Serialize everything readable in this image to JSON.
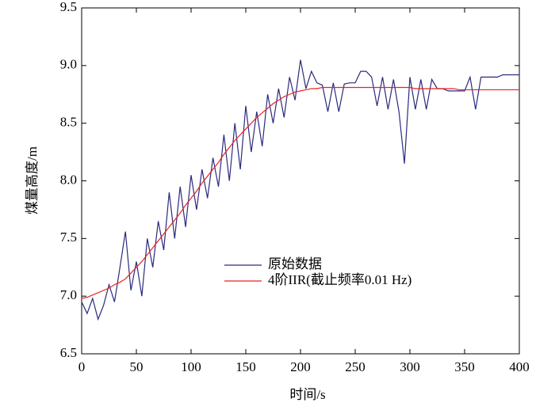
{
  "chart_data": {
    "type": "line",
    "xlabel": "时间/s",
    "ylabel": "煤量高度/m",
    "x": [
      0,
      5,
      10,
      15,
      20,
      25,
      30,
      35,
      40,
      45,
      50,
      55,
      60,
      65,
      70,
      75,
      80,
      85,
      90,
      95,
      100,
      105,
      110,
      115,
      120,
      125,
      130,
      135,
      140,
      145,
      150,
      155,
      160,
      165,
      170,
      175,
      180,
      185,
      190,
      195,
      200,
      205,
      210,
      215,
      220,
      225,
      230,
      235,
      240,
      245,
      250,
      255,
      260,
      265,
      270,
      275,
      280,
      285,
      290,
      295,
      300,
      305,
      310,
      315,
      320,
      325,
      330,
      335,
      340,
      345,
      350,
      355,
      360,
      365,
      370,
      375,
      380,
      385,
      390,
      395,
      400
    ],
    "series": [
      {
        "name": "原始数据",
        "color": "#2b2a7e",
        "values": [
          6.95,
          6.85,
          6.98,
          6.8,
          6.92,
          7.1,
          6.95,
          7.25,
          7.56,
          7.05,
          7.3,
          7.0,
          7.5,
          7.25,
          7.65,
          7.4,
          7.9,
          7.5,
          7.95,
          7.6,
          8.05,
          7.75,
          8.1,
          7.85,
          8.2,
          7.95,
          8.4,
          8.0,
          8.5,
          8.1,
          8.65,
          8.25,
          8.6,
          8.3,
          8.75,
          8.5,
          8.8,
          8.55,
          8.9,
          8.7,
          9.05,
          8.8,
          8.95,
          8.85,
          8.83,
          8.6,
          8.85,
          8.6,
          8.84,
          8.85,
          8.85,
          8.95,
          8.95,
          8.9,
          8.65,
          8.9,
          8.62,
          8.88,
          8.6,
          8.15,
          8.9,
          8.62,
          8.88,
          8.62,
          8.88,
          8.8,
          8.8,
          8.78,
          8.78,
          8.78,
          8.78,
          8.9,
          8.62,
          8.9,
          8.9,
          8.9,
          8.9,
          8.92,
          8.92,
          8.92,
          8.92
        ]
      },
      {
        "name": "4阶IIR(截止频率0.01 Hz)",
        "color": "#e8231e",
        "values": [
          6.98,
          6.99,
          7.01,
          7.03,
          7.05,
          7.07,
          7.1,
          7.12,
          7.15,
          7.2,
          7.25,
          7.3,
          7.36,
          7.42,
          7.48,
          7.54,
          7.6,
          7.66,
          7.72,
          7.79,
          7.85,
          7.91,
          7.98,
          8.04,
          8.1,
          8.16,
          8.23,
          8.29,
          8.35,
          8.4,
          8.45,
          8.5,
          8.55,
          8.59,
          8.63,
          8.67,
          8.7,
          8.73,
          8.75,
          8.77,
          8.78,
          8.79,
          8.8,
          8.8,
          8.81,
          8.81,
          8.81,
          8.81,
          8.81,
          8.81,
          8.81,
          8.81,
          8.81,
          8.81,
          8.81,
          8.81,
          8.81,
          8.81,
          8.81,
          8.81,
          8.81,
          8.8,
          8.8,
          8.8,
          8.8,
          8.8,
          8.8,
          8.8,
          8.8,
          8.79,
          8.79,
          8.79,
          8.79,
          8.79,
          8.79,
          8.79,
          8.79,
          8.79,
          8.79,
          8.79,
          8.79
        ]
      }
    ],
    "xlim": [
      0,
      400
    ],
    "xticks": [
      0,
      50,
      100,
      150,
      200,
      250,
      300,
      350,
      400
    ],
    "ylim": [
      6.5,
      9.5
    ],
    "yticks": [
      6.5,
      {
        "value": 7,
        "label": "7.0"
      },
      7.5,
      {
        "value": 8,
        "label": "8.0"
      },
      8.5,
      {
        "value": 9,
        "label": "9.0"
      },
      9.5
    ],
    "grid": false
  }
}
